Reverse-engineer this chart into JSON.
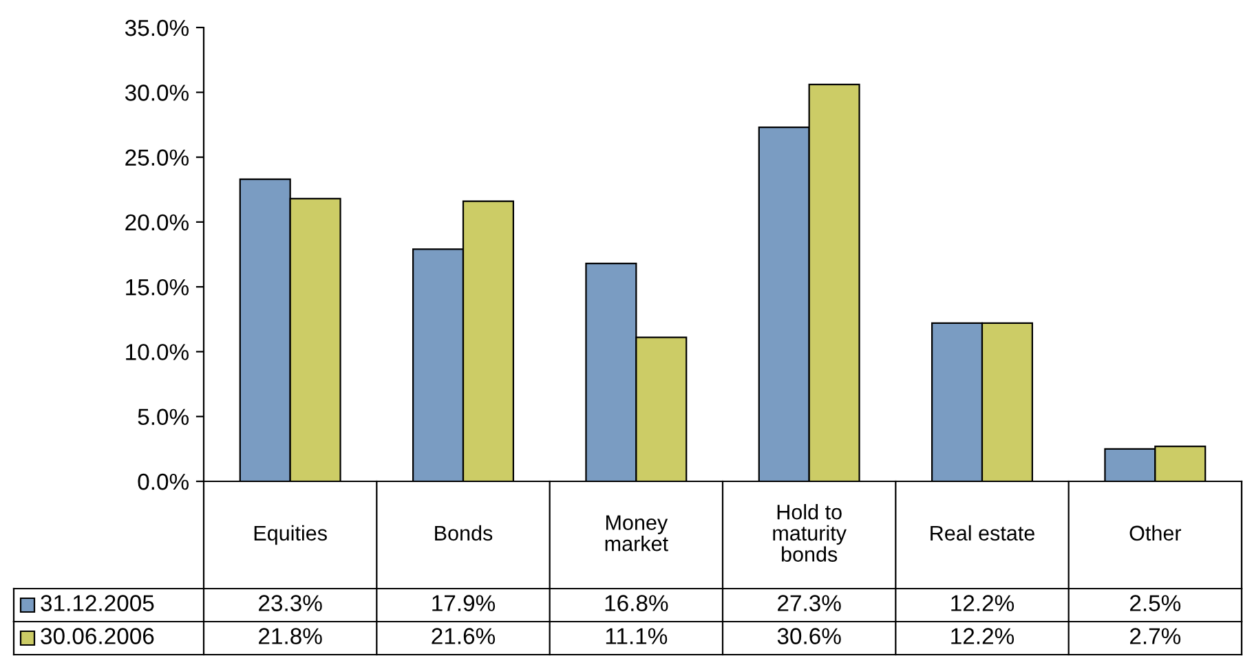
{
  "chart_data": {
    "type": "bar",
    "categories": [
      "Equities",
      "Bonds",
      "Money\nmarket",
      "Hold to\nmaturity\nbonds",
      "Real estate",
      "Other"
    ],
    "series": [
      {
        "name": "31.12.2005",
        "color": "#7a9cc2",
        "values": [
          23.3,
          17.9,
          16.8,
          27.3,
          12.2,
          2.5
        ],
        "value_labels": [
          "23.3%",
          "17.9%",
          "16.8%",
          "27.3%",
          "12.2%",
          "2.5%"
        ]
      },
      {
        "name": "30.06.2006",
        "color": "#cccc66",
        "values": [
          21.8,
          21.6,
          11.1,
          30.6,
          12.2,
          2.7
        ],
        "value_labels": [
          "21.8%",
          "21.6%",
          "11.1%",
          "30.6%",
          "12.2%",
          "2.7%"
        ]
      }
    ],
    "ylim": [
      0,
      35
    ],
    "yticks": [
      {
        "value": 0,
        "label": "0.0%"
      },
      {
        "value": 5,
        "label": "5.0%"
      },
      {
        "value": 10,
        "label": "10.0%"
      },
      {
        "value": 15,
        "label": "15.0%"
      },
      {
        "value": 20,
        "label": "20.0%"
      },
      {
        "value": 25,
        "label": "25.0%"
      },
      {
        "value": 30,
        "label": "30.0%"
      },
      {
        "value": 35,
        "label": "35.0%"
      }
    ],
    "grid": false,
    "legend": "bottom left"
  }
}
